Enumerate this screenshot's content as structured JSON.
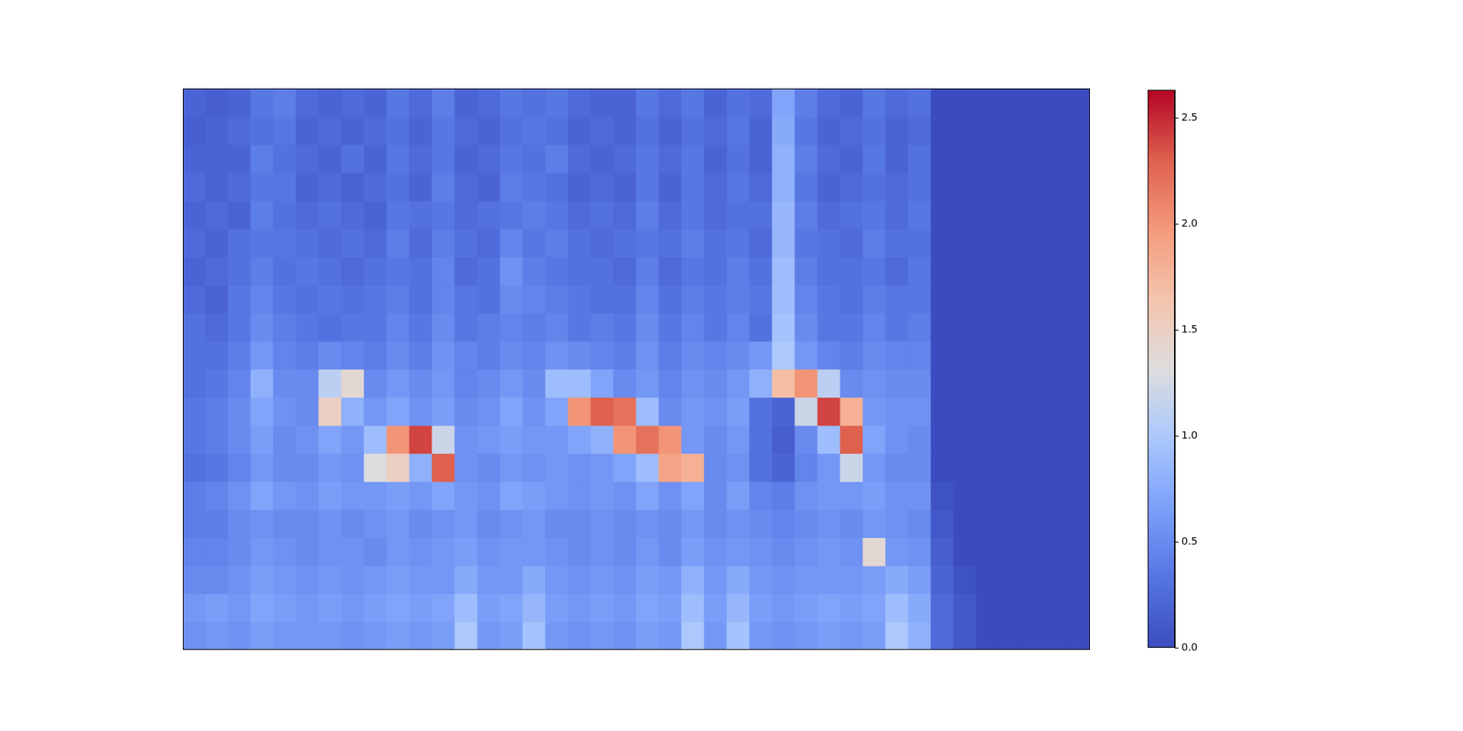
{
  "chart_data": {
    "type": "heatmap",
    "color": "coolwarm",
    "tick_labels": false,
    "cells": [
      [
        0.2,
        0.15,
        0.2,
        0.35,
        0.4,
        0.25,
        0.2,
        0.25,
        0.2,
        0.35,
        0.25,
        0.4,
        0.2,
        0.25,
        0.35,
        0.3,
        0.35,
        0.25,
        0.2,
        0.2,
        0.35,
        0.25,
        0.35,
        0.2,
        0.3,
        0.25,
        0.7,
        0.4,
        0.25,
        0.2,
        0.35,
        0.25,
        0.3,
        0,
        0,
        0,
        0,
        0,
        0,
        0
      ],
      [
        0.15,
        0.2,
        0.25,
        0.3,
        0.35,
        0.2,
        0.25,
        0.2,
        0.25,
        0.3,
        0.2,
        0.35,
        0.25,
        0.2,
        0.3,
        0.35,
        0.3,
        0.2,
        0.25,
        0.2,
        0.3,
        0.2,
        0.3,
        0.25,
        0.35,
        0.2,
        0.75,
        0.35,
        0.2,
        0.25,
        0.3,
        0.2,
        0.25,
        0,
        0,
        0,
        0,
        0,
        0,
        0
      ],
      [
        0.2,
        0.2,
        0.2,
        0.4,
        0.3,
        0.25,
        0.2,
        0.3,
        0.2,
        0.35,
        0.25,
        0.35,
        0.2,
        0.25,
        0.35,
        0.3,
        0.4,
        0.25,
        0.2,
        0.25,
        0.35,
        0.25,
        0.35,
        0.2,
        0.3,
        0.2,
        0.8,
        0.4,
        0.25,
        0.2,
        0.35,
        0.2,
        0.3,
        0,
        0,
        0,
        0,
        0,
        0,
        0
      ],
      [
        0.25,
        0.2,
        0.25,
        0.35,
        0.35,
        0.2,
        0.25,
        0.2,
        0.25,
        0.3,
        0.2,
        0.4,
        0.25,
        0.2,
        0.4,
        0.35,
        0.3,
        0.2,
        0.25,
        0.2,
        0.35,
        0.2,
        0.35,
        0.25,
        0.35,
        0.25,
        0.8,
        0.35,
        0.2,
        0.25,
        0.3,
        0.25,
        0.3,
        0,
        0,
        0,
        0,
        0,
        0,
        0
      ],
      [
        0.2,
        0.25,
        0.2,
        0.4,
        0.3,
        0.25,
        0.3,
        0.25,
        0.2,
        0.35,
        0.3,
        0.35,
        0.25,
        0.3,
        0.35,
        0.4,
        0.35,
        0.25,
        0.3,
        0.25,
        0.4,
        0.25,
        0.35,
        0.25,
        0.3,
        0.3,
        0.85,
        0.4,
        0.25,
        0.3,
        0.35,
        0.25,
        0.35,
        0,
        0,
        0,
        0,
        0,
        0,
        0
      ],
      [
        0.25,
        0.2,
        0.3,
        0.35,
        0.35,
        0.3,
        0.25,
        0.3,
        0.25,
        0.4,
        0.25,
        0.4,
        0.3,
        0.25,
        0.45,
        0.35,
        0.4,
        0.3,
        0.25,
        0.3,
        0.35,
        0.3,
        0.4,
        0.3,
        0.35,
        0.25,
        0.85,
        0.35,
        0.3,
        0.25,
        0.4,
        0.3,
        0.3,
        0,
        0,
        0,
        0,
        0,
        0,
        0
      ],
      [
        0.2,
        0.25,
        0.3,
        0.4,
        0.3,
        0.35,
        0.3,
        0.25,
        0.3,
        0.35,
        0.3,
        0.45,
        0.25,
        0.3,
        0.55,
        0.4,
        0.35,
        0.3,
        0.3,
        0.25,
        0.4,
        0.25,
        0.35,
        0.3,
        0.4,
        0.3,
        0.9,
        0.4,
        0.3,
        0.3,
        0.35,
        0.25,
        0.35,
        0,
        0,
        0,
        0,
        0,
        0,
        0
      ],
      [
        0.25,
        0.2,
        0.35,
        0.45,
        0.35,
        0.3,
        0.35,
        0.3,
        0.35,
        0.4,
        0.3,
        0.45,
        0.35,
        0.3,
        0.5,
        0.45,
        0.4,
        0.35,
        0.3,
        0.3,
        0.45,
        0.3,
        0.4,
        0.35,
        0.4,
        0.35,
        0.9,
        0.45,
        0.35,
        0.3,
        0.4,
        0.35,
        0.35,
        0,
        0,
        0,
        0,
        0,
        0,
        0
      ],
      [
        0.3,
        0.25,
        0.35,
        0.5,
        0.4,
        0.35,
        0.3,
        0.35,
        0.35,
        0.45,
        0.35,
        0.5,
        0.35,
        0.4,
        0.45,
        0.4,
        0.45,
        0.35,
        0.4,
        0.35,
        0.5,
        0.35,
        0.45,
        0.35,
        0.45,
        0.3,
        0.95,
        0.5,
        0.35,
        0.35,
        0.45,
        0.35,
        0.4,
        0,
        0,
        0,
        0,
        0,
        0,
        0
      ],
      [
        0.3,
        0.3,
        0.4,
        0.6,
        0.45,
        0.4,
        0.5,
        0.45,
        0.4,
        0.5,
        0.4,
        0.55,
        0.45,
        0.4,
        0.5,
        0.45,
        0.55,
        0.5,
        0.45,
        0.4,
        0.55,
        0.4,
        0.5,
        0.45,
        0.5,
        0.6,
        1.0,
        0.6,
        0.45,
        0.4,
        0.5,
        0.45,
        0.45,
        0,
        0,
        0,
        0,
        0,
        0,
        0
      ],
      [
        0.3,
        0.35,
        0.45,
        0.8,
        0.5,
        0.5,
        1.1,
        1.4,
        0.5,
        0.6,
        0.5,
        0.6,
        0.45,
        0.5,
        0.6,
        0.5,
        0.9,
        0.9,
        0.7,
        0.5,
        0.6,
        0.45,
        0.55,
        0.5,
        0.6,
        0.8,
        1.7,
        2.0,
        1.1,
        0.5,
        0.55,
        0.5,
        0.5,
        0,
        0,
        0,
        0,
        0,
        0,
        0
      ],
      [
        0.35,
        0.4,
        0.5,
        0.7,
        0.55,
        0.5,
        1.5,
        0.8,
        0.6,
        0.7,
        0.55,
        0.65,
        0.5,
        0.55,
        0.7,
        0.55,
        0.7,
        2.0,
        2.3,
        2.2,
        0.9,
        0.5,
        0.6,
        0.55,
        0.65,
        0.3,
        0.2,
        1.2,
        2.4,
        1.8,
        0.6,
        0.55,
        0.55,
        0,
        0,
        0,
        0,
        0,
        0,
        0
      ],
      [
        0.35,
        0.4,
        0.5,
        0.65,
        0.5,
        0.55,
        0.7,
        0.6,
        0.9,
        2.0,
        2.4,
        1.2,
        0.55,
        0.6,
        0.65,
        0.6,
        0.6,
        0.7,
        0.8,
        2.0,
        2.2,
        2.0,
        0.6,
        0.5,
        0.6,
        0.3,
        0.15,
        0.5,
        0.9,
        2.3,
        0.7,
        0.55,
        0.5,
        0,
        0,
        0,
        0,
        0,
        0,
        0
      ],
      [
        0.3,
        0.35,
        0.45,
        0.6,
        0.5,
        0.5,
        0.6,
        0.55,
        1.3,
        1.5,
        0.8,
        2.3,
        0.55,
        0.5,
        0.6,
        0.55,
        0.6,
        0.55,
        0.6,
        0.7,
        0.9,
        1.9,
        1.8,
        0.5,
        0.55,
        0.3,
        0.2,
        0.45,
        0.6,
        1.2,
        0.6,
        0.5,
        0.5,
        0,
        0,
        0,
        0,
        0,
        0,
        0
      ],
      [
        0.4,
        0.45,
        0.55,
        0.7,
        0.6,
        0.55,
        0.65,
        0.6,
        0.6,
        0.65,
        0.6,
        0.7,
        0.6,
        0.55,
        0.7,
        0.65,
        0.6,
        0.55,
        0.6,
        0.55,
        0.7,
        0.55,
        0.7,
        0.5,
        0.65,
        0.45,
        0.4,
        0.55,
        0.6,
        0.6,
        0.65,
        0.55,
        0.55,
        0.05,
        0,
        0,
        0,
        0,
        0,
        0
      ],
      [
        0.4,
        0.4,
        0.5,
        0.55,
        0.5,
        0.5,
        0.55,
        0.5,
        0.55,
        0.6,
        0.5,
        0.55,
        0.6,
        0.5,
        0.55,
        0.6,
        0.5,
        0.5,
        0.55,
        0.5,
        0.55,
        0.5,
        0.6,
        0.5,
        0.55,
        0.5,
        0.45,
        0.5,
        0.55,
        0.5,
        0.6,
        0.55,
        0.5,
        0.1,
        0,
        0,
        0,
        0,
        0,
        0
      ],
      [
        0.45,
        0.45,
        0.5,
        0.6,
        0.55,
        0.5,
        0.55,
        0.55,
        0.5,
        0.6,
        0.55,
        0.6,
        0.65,
        0.55,
        0.6,
        0.6,
        0.55,
        0.5,
        0.55,
        0.5,
        0.6,
        0.5,
        0.65,
        0.55,
        0.6,
        0.55,
        0.5,
        0.55,
        0.6,
        0.55,
        1.4,
        0.6,
        0.55,
        0.15,
        0,
        0,
        0,
        0,
        0,
        0
      ],
      [
        0.5,
        0.5,
        0.55,
        0.65,
        0.6,
        0.55,
        0.6,
        0.55,
        0.6,
        0.65,
        0.6,
        0.6,
        0.75,
        0.6,
        0.6,
        0.75,
        0.6,
        0.55,
        0.6,
        0.55,
        0.65,
        0.6,
        0.8,
        0.6,
        0.75,
        0.6,
        0.55,
        0.6,
        0.6,
        0.6,
        0.65,
        0.75,
        0.65,
        0.2,
        0.05,
        0,
        0,
        0,
        0,
        0
      ],
      [
        0.6,
        0.65,
        0.6,
        0.7,
        0.65,
        0.6,
        0.65,
        0.6,
        0.65,
        0.7,
        0.65,
        0.7,
        0.9,
        0.65,
        0.7,
        0.85,
        0.65,
        0.6,
        0.65,
        0.6,
        0.7,
        0.65,
        0.9,
        0.65,
        0.85,
        0.65,
        0.6,
        0.65,
        0.7,
        0.65,
        0.7,
        0.9,
        0.75,
        0.25,
        0.1,
        0,
        0,
        0,
        0,
        0
      ],
      [
        0.55,
        0.6,
        0.55,
        0.65,
        0.6,
        0.6,
        0.6,
        0.55,
        0.6,
        0.65,
        0.6,
        0.65,
        1.0,
        0.6,
        0.65,
        0.95,
        0.6,
        0.55,
        0.6,
        0.55,
        0.65,
        0.6,
        1.0,
        0.6,
        0.95,
        0.6,
        0.55,
        0.6,
        0.65,
        0.6,
        0.65,
        1.0,
        0.8,
        0.25,
        0.1,
        0,
        0,
        0,
        0,
        0
      ]
    ],
    "colorbar": {
      "lim": [
        0,
        2.63
      ],
      "ticks": [
        {
          "value": 0,
          "label": "0.0"
        },
        0.5,
        {
          "value": 1,
          "label": "1.0"
        },
        1.5,
        {
          "value": 2,
          "label": "2.0"
        },
        2.5
      ]
    }
  }
}
